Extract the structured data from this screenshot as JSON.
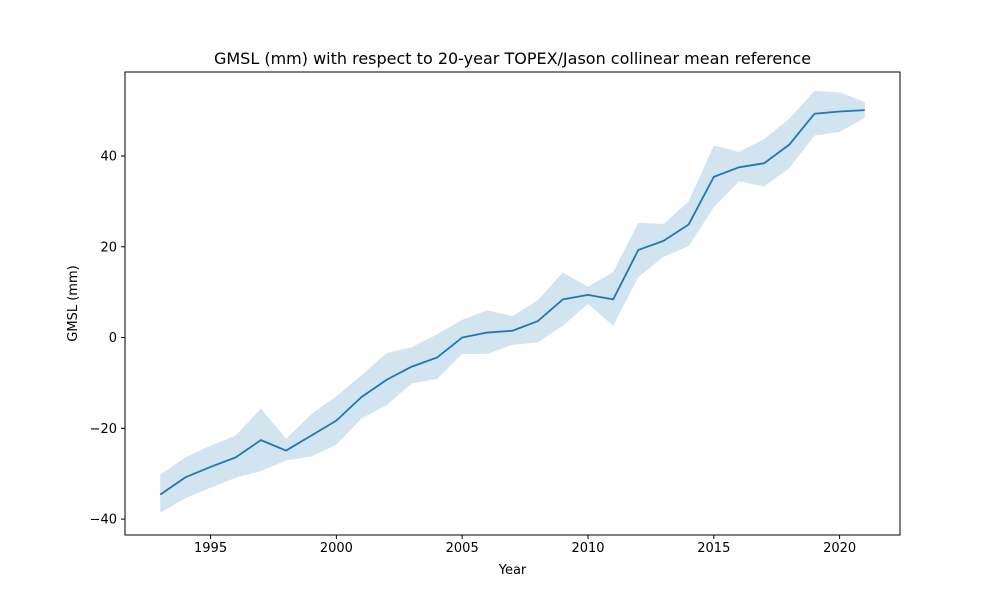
{
  "chart_data": {
    "type": "line",
    "title": "GMSL (mm) with respect to 20-year TOPEX/Jason collinear mean reference",
    "xlabel": "Year",
    "ylabel": "GMSL (mm)",
    "xlim": [
      1991.6,
      2022.4
    ],
    "ylim": [
      -43.5,
      58.5
    ],
    "xticks": [
      1995,
      2000,
      2005,
      2010,
      2015,
      2020
    ],
    "yticks": [
      -40,
      -20,
      0,
      20,
      40
    ],
    "grid": false,
    "x": [
      1993,
      1994,
      1995,
      1996,
      1997,
      1998,
      1999,
      2000,
      2001,
      2002,
      2003,
      2004,
      2005,
      2006,
      2007,
      2008,
      2009,
      2010,
      2011,
      2012,
      2013,
      2014,
      2015,
      2016,
      2017,
      2018,
      2019,
      2020,
      2021
    ],
    "series": [
      {
        "values": [
          -34.6,
          -30.8,
          -28.5,
          -26.4,
          -22.6,
          -24.9,
          -21.6,
          -18.3,
          -13.1,
          -9.3,
          -6.4,
          -4.4,
          0.0,
          1.1,
          1.5,
          3.6,
          8.4,
          9.4,
          8.4,
          19.3,
          21.3,
          24.9,
          35.4,
          37.5,
          38.4,
          42.5,
          49.3,
          49.8,
          50.1
        ],
        "lower": [
          -38.6,
          -35.4,
          -33.1,
          -30.9,
          -29.4,
          -27.1,
          -26.2,
          -23.6,
          -17.8,
          -14.9,
          -10.1,
          -9.1,
          -3.6,
          -3.6,
          -1.6,
          -1.1,
          2.6,
          7.4,
          2.6,
          13.3,
          17.8,
          20.1,
          28.7,
          34.4,
          33.3,
          37.3,
          44.5,
          45.3,
          48.4
        ],
        "upper": [
          -30.2,
          -26.4,
          -23.8,
          -21.6,
          -15.6,
          -22.3,
          -16.9,
          -12.9,
          -8.3,
          -3.4,
          -2.1,
          0.7,
          3.9,
          6.0,
          4.7,
          8.2,
          14.3,
          11.2,
          14.4,
          25.3,
          25.0,
          30.0,
          42.3,
          40.9,
          43.7,
          48.2,
          54.3,
          54.0,
          51.9
        ]
      }
    ],
    "colors": {
      "line": "#1f77b4",
      "band": "#1f77b4",
      "axes": "#000000",
      "background": "#ffffff"
    }
  }
}
